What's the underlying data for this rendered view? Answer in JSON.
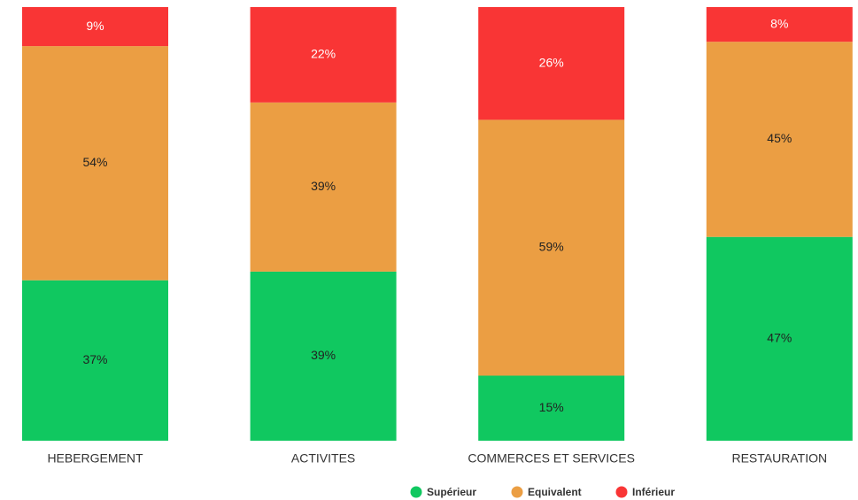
{
  "chart_data": {
    "type": "stacked_bar",
    "categories": [
      "HEBERGEMENT",
      "ACTIVITES",
      "COMMERCES ET SERVICES",
      "RESTAURATION"
    ],
    "series": [
      {
        "name": "Supérieur",
        "color": "#10c860",
        "values": [
          37,
          39,
          15,
          47
        ],
        "value_labels": [
          "37%",
          "39%",
          "15%",
          "47%"
        ]
      },
      {
        "name": "Equivalent",
        "color": "#eb9e43",
        "values": [
          54,
          39,
          59,
          45
        ],
        "value_labels": [
          "54%",
          "39%",
          "59%",
          "45%"
        ]
      },
      {
        "name": "Inférieur",
        "color": "#f93535",
        "values": [
          9,
          22,
          26,
          8
        ],
        "value_labels": [
          "9%",
          "22%",
          "26%",
          "8%"
        ]
      }
    ]
  }
}
